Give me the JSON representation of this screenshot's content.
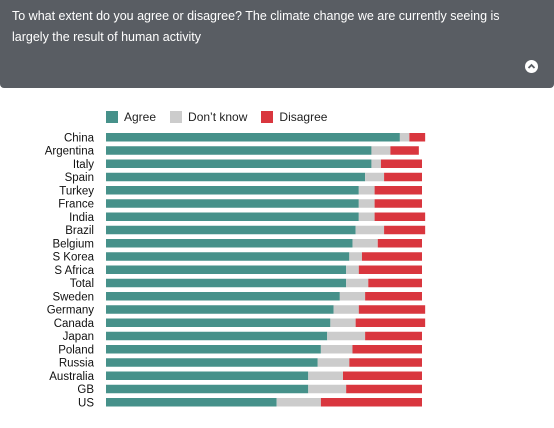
{
  "header": {
    "question": "To what extent do you agree or disagree? The climate change we are currently seeing is largely the result of human activity",
    "collapse_icon": "chevron-up-icon"
  },
  "colors": {
    "header_bg": "#595d63",
    "agree": "#46918a",
    "dont_know": "#cccccc",
    "disagree": "#d9363e"
  },
  "chart_data": {
    "type": "bar",
    "orientation": "horizontal",
    "stacked": true,
    "xlim": [
      0,
      100
    ],
    "grid": false,
    "legend_position": "top",
    "categories": [
      "China",
      "Argentina",
      "Italy",
      "Spain",
      "Turkey",
      "France",
      "India",
      "Brazil",
      "Belgium",
      "S Korea",
      "S Africa",
      "Total",
      "Sweden",
      "Germany",
      "Canada",
      "Japan",
      "Poland",
      "Russia",
      "Australia",
      "GB",
      "US"
    ],
    "series": [
      {
        "name": "Agree",
        "values": [
          93,
          84,
          84,
          82,
          80,
          80,
          80,
          79,
          78,
          77,
          76,
          76,
          74,
          72,
          71,
          70,
          68,
          67,
          64,
          64,
          54
        ]
      },
      {
        "name": "Don’t know",
        "values": [
          3,
          6,
          3,
          6,
          5,
          5,
          5,
          9,
          8,
          4,
          4,
          7,
          8,
          8,
          8,
          12,
          10,
          10,
          11,
          12,
          14
        ]
      },
      {
        "name": "Disagree",
        "values": [
          5,
          9,
          13,
          12,
          15,
          15,
          16,
          13,
          14,
          19,
          20,
          17,
          18,
          21,
          22,
          18,
          22,
          23,
          25,
          24,
          32
        ]
      }
    ]
  }
}
